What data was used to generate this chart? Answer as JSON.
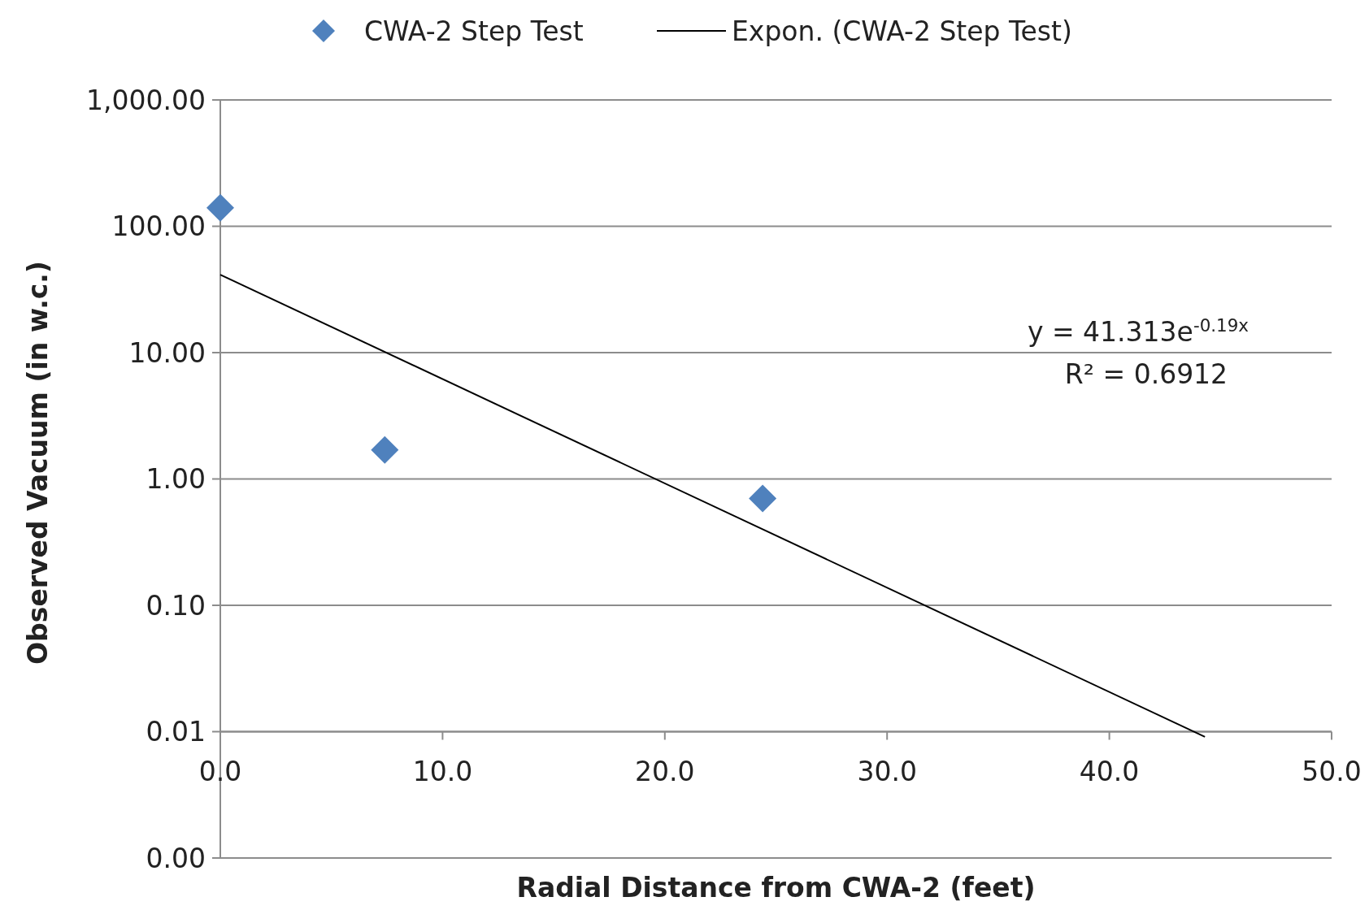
{
  "chart_data": {
    "type": "scatter",
    "xlabel": "Radial Distance from CWA-2 (feet)",
    "ylabel": "Observed Vacuum (in w.c.)",
    "log": "y",
    "grid": "y",
    "legend": "top",
    "marker": "diamond",
    "xlim": [
      0,
      50
    ],
    "xticks": [
      {
        "value": 0,
        "label": "0.0"
      },
      {
        "value": 10,
        "label": "10.0"
      },
      {
        "value": 20,
        "label": "20.0"
      },
      {
        "value": 30,
        "label": "30.0"
      },
      {
        "value": 40,
        "label": "40.0"
      },
      {
        "value": 50,
        "label": "50.0"
      }
    ],
    "ylim": [
      0.001,
      1000
    ],
    "yticks": [
      {
        "value": 0.001,
        "label": "0.00"
      },
      {
        "value": 0.01,
        "label": "0.01"
      },
      {
        "value": 0.1,
        "label": "0.10"
      },
      {
        "value": 1,
        "label": "1.00"
      },
      {
        "value": 10,
        "label": "10.00"
      },
      {
        "value": 100,
        "label": "100.00"
      },
      {
        "value": 1000,
        "label": "1,000.00"
      }
    ],
    "series": [
      {
        "name": "CWA-2 Step Test",
        "color": "#4f81bd",
        "x": [
          0,
          7.4,
          24.4
        ],
        "values": [
          140,
          1.7,
          0.7
        ]
      },
      {
        "name": "Expon. (CWA-2 Step Test)",
        "type": "line",
        "color": "#000000",
        "line_style": "solid",
        "marker": "none",
        "x": [
          0,
          44.3
        ],
        "values": [
          41.313,
          0.0091
        ]
      }
    ],
    "annotations": [
      "y = 41.313e$^{-0.19x}$",
      "R² = 0.6912"
    ]
  }
}
